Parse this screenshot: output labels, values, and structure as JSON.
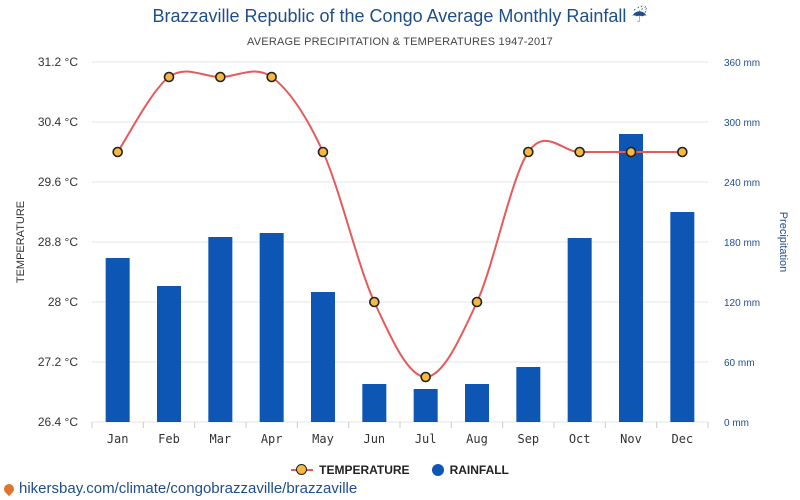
{
  "header": {
    "title": "Brazzaville Republic of the Congo Average Monthly Rainfall",
    "title_icon": "☔",
    "subtitle": "AVERAGE PRECIPITATION & TEMPERATURES 1947-2017"
  },
  "legend": {
    "temperature_label": "TEMPERATURE",
    "rainfall_label": "RAINFALL"
  },
  "source": {
    "text": "hikersbay.com/climate/congobrazzaville/brazzaville",
    "icon": "location-pin-icon"
  },
  "colors": {
    "bar": "#0d56b3",
    "line": "#e55a5a",
    "marker_fill": "#f5b942",
    "marker_stroke": "#222222",
    "grid": "#e6e6e6",
    "title": "#1f4e8c"
  },
  "chart_data": {
    "type": "bar",
    "combo": "bar+line",
    "categories": [
      "Jan",
      "Feb",
      "Mar",
      "Apr",
      "May",
      "Jun",
      "Jul",
      "Aug",
      "Sep",
      "Oct",
      "Nov",
      "Dec"
    ],
    "series": [
      {
        "name": "TEMPERATURE",
        "type": "line",
        "axis": "left",
        "values": [
          30,
          31,
          31,
          31,
          30,
          28,
          27,
          28,
          30,
          30,
          30,
          30
        ]
      },
      {
        "name": "RAINFALL",
        "type": "bar",
        "axis": "right",
        "values": [
          164,
          136,
          185,
          189,
          130,
          38,
          33,
          38,
          55,
          184,
          288,
          210
        ]
      }
    ],
    "y_left": {
      "label": "TEMPERATURE",
      "ylim": [
        26.4,
        31.2
      ],
      "ticks": [
        26.4,
        27.2,
        28,
        28.8,
        29.6,
        30.4,
        31.2
      ],
      "tick_labels": [
        "26.4 °C",
        "27.2 °C",
        "28 °C",
        "28.8 °C",
        "29.6 °C",
        "30.4 °C",
        "31.2 °C"
      ]
    },
    "y_right": {
      "label": "Precipitation",
      "ylim": [
        0,
        360
      ],
      "ticks": [
        0,
        60,
        120,
        180,
        240,
        300,
        360
      ],
      "tick_labels": [
        "0 mm",
        "60 mm",
        "120 mm",
        "180 mm",
        "240 mm",
        "300 mm",
        "360 mm"
      ]
    },
    "grid": true,
    "legend_position": "bottom-center"
  }
}
